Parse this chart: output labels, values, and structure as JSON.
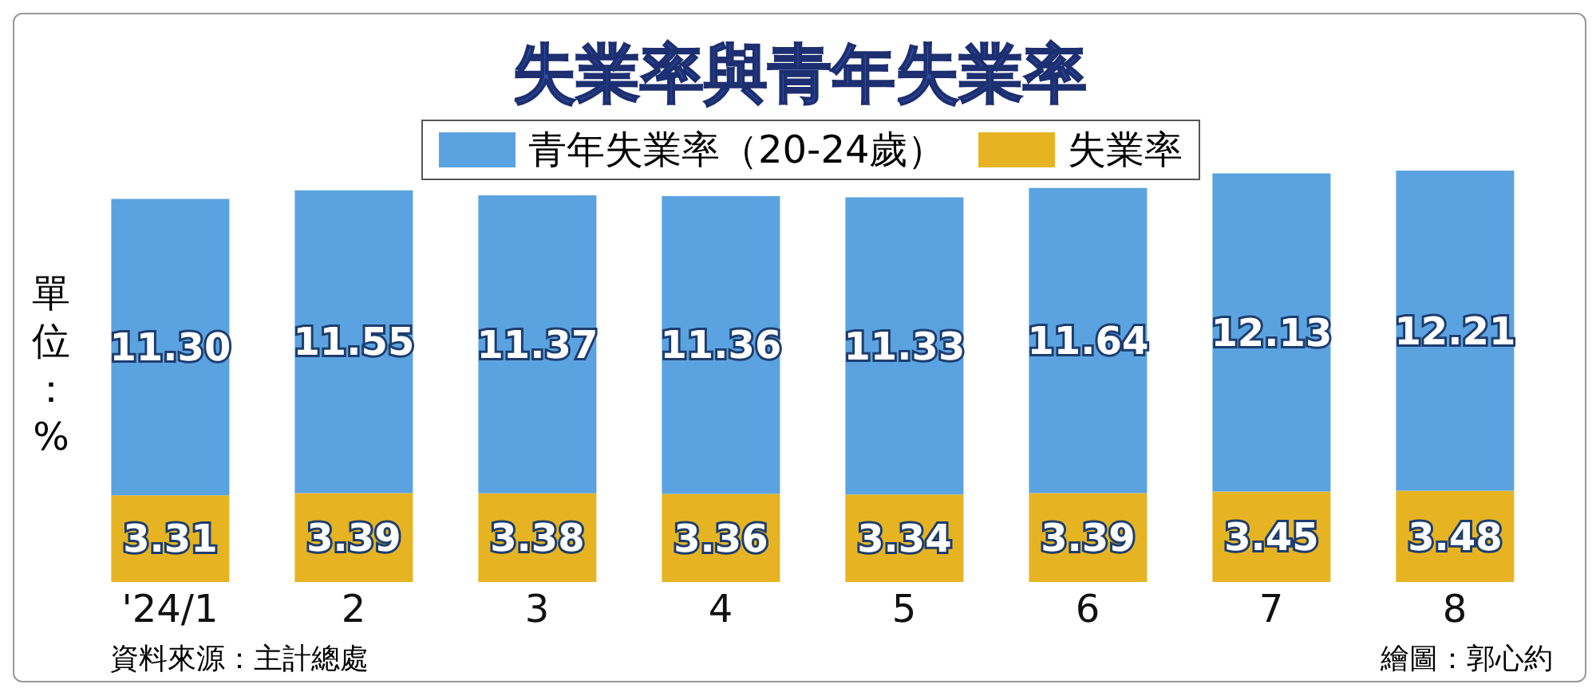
{
  "chart_data": {
    "type": "bar",
    "title": "失業率與青年失業率",
    "ylabel": "單位：%",
    "stacked": true,
    "legend": "top",
    "grid": false,
    "categories": [
      "'24/1",
      "2",
      "3",
      "4",
      "5",
      "6",
      "7",
      "8"
    ],
    "series": [
      {
        "name": "失業率",
        "color": "#e6b422",
        "values": [
          3.31,
          3.39,
          3.38,
          3.36,
          3.34,
          3.39,
          3.45,
          3.48
        ],
        "value_labels": [
          "3.31",
          "3.39",
          "3.38",
          "3.36",
          "3.34",
          "3.39",
          "3.45",
          "3.48"
        ]
      },
      {
        "name": "青年失業率（20-24歲）",
        "color": "#5ba3e0",
        "values": [
          11.3,
          11.55,
          11.37,
          11.36,
          11.33,
          11.64,
          12.13,
          12.21
        ],
        "value_labels": [
          "11.30",
          "11.55",
          "11.37",
          "11.36",
          "11.33",
          "11.64",
          "12.13",
          "12.21"
        ]
      }
    ],
    "annotations": [
      "資料來源：主計總處",
      "繪圖：郭心約"
    ]
  }
}
